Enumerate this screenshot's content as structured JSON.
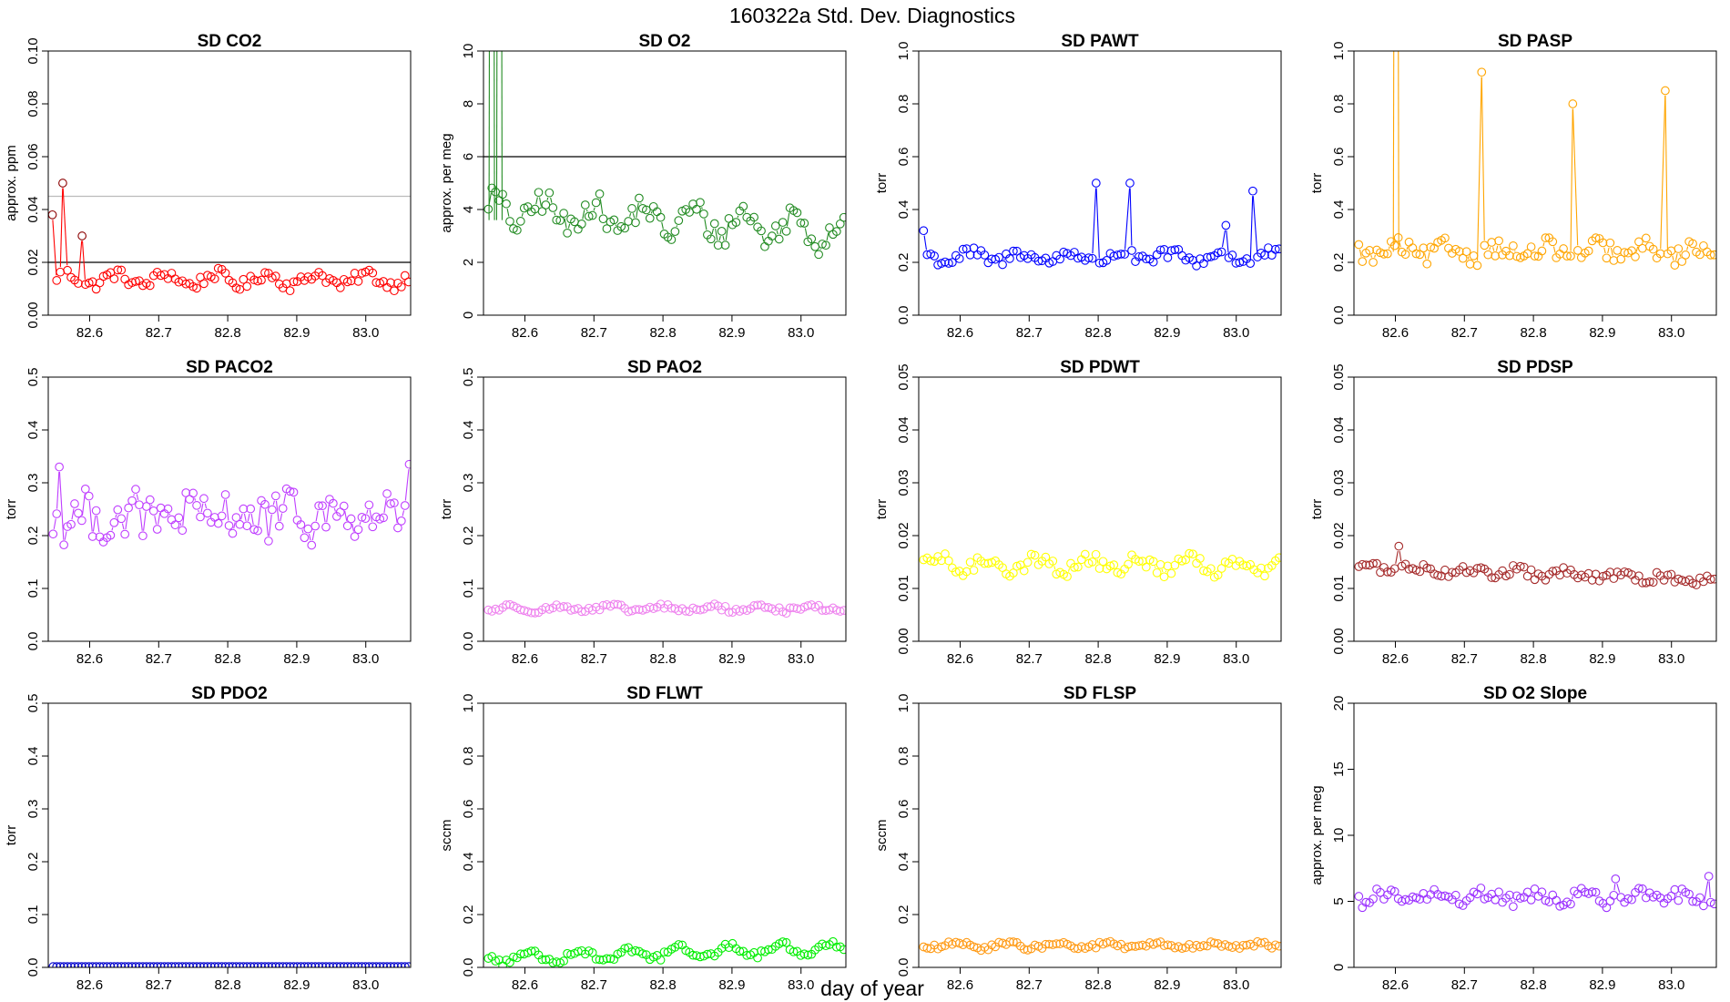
{
  "figure": {
    "title": "160322a   Std. Dev. Diagnostics",
    "xlabel": "day of year"
  },
  "chart_data": [
    {
      "type": "scatter",
      "title": "SD CO2",
      "ylabel": "approx. ppm",
      "color": "#ff0000",
      "xlim": [
        82.54,
        83.065
      ],
      "ylim": [
        0,
        0.1
      ],
      "yticks": [
        0,
        0.02,
        0.04,
        0.06,
        0.08,
        0.1
      ],
      "ytick_labels": [
        "0.00",
        "0.02",
        "0.04",
        "0.06",
        "0.08",
        "0.10"
      ],
      "xticks": [
        82.6,
        82.7,
        82.8,
        82.9,
        83.0
      ],
      "xtick_labels": [
        "82.6",
        "82.7",
        "82.8",
        "82.9",
        "83.0"
      ],
      "hlines": [
        {
          "y": 0.02,
          "color": "#000000"
        },
        {
          "y": 0.045,
          "color": "#bbbbbb"
        }
      ],
      "outliers": [
        {
          "x": 82.546,
          "y": 0.038
        },
        {
          "x": 82.561,
          "y": 0.05
        },
        {
          "x": 82.589,
          "y": 0.03
        }
      ],
      "base": 0.0135,
      "amp": 0.0022,
      "noise": 0.0022,
      "lines": true
    },
    {
      "type": "scatter",
      "title": "SD O2",
      "ylabel": "approx. per meg",
      "color": "#228b22",
      "xlim": [
        82.54,
        83.065
      ],
      "ylim": [
        0,
        10
      ],
      "yticks": [
        0,
        2,
        4,
        6,
        8,
        10
      ],
      "ytick_labels": [
        "0",
        "2",
        "4",
        "6",
        "8",
        "10"
      ],
      "xticks": [
        82.6,
        82.7,
        82.8,
        82.9,
        83.0
      ],
      "xtick_labels": [
        "82.6",
        "82.7",
        "82.8",
        "82.9",
        "83.0"
      ],
      "hlines": [
        {
          "y": 6,
          "color": "#000000"
        }
      ],
      "spikes": [
        {
          "x": 82.552,
          "y": 60
        },
        {
          "x": 82.563,
          "y": 60
        }
      ],
      "base": 3.6,
      "amp": 0.5,
      "noise": 0.5,
      "trend": 0.8,
      "lines": true
    },
    {
      "type": "scatter",
      "title": "SD PAWT",
      "ylabel": "torr",
      "color": "#0000ff",
      "xlim": [
        82.54,
        83.065
      ],
      "ylim": [
        0,
        1
      ],
      "yticks": [
        0,
        0.2,
        0.4,
        0.6,
        0.8,
        1
      ],
      "ytick_labels": [
        "0.0",
        "0.2",
        "0.4",
        "0.6",
        "0.8",
        "1.0"
      ],
      "xticks": [
        82.6,
        82.7,
        82.8,
        82.9,
        83.0
      ],
      "xtick_labels": [
        "82.6",
        "82.7",
        "82.8",
        "82.9",
        "83.0"
      ],
      "outliers": [
        {
          "x": 82.547,
          "y": 0.32
        },
        {
          "x": 82.797,
          "y": 0.5
        },
        {
          "x": 82.846,
          "y": 0.5
        },
        {
          "x": 83.024,
          "y": 0.47
        },
        {
          "x": 82.985,
          "y": 0.34
        }
      ],
      "base": 0.22,
      "amp": 0.018,
      "noise": 0.022,
      "lines": true
    },
    {
      "type": "scatter",
      "title": "SD PASP",
      "ylabel": "torr",
      "color": "#ffa500",
      "xlim": [
        82.54,
        83.065
      ],
      "ylim": [
        0,
        1
      ],
      "yticks": [
        0,
        0.2,
        0.4,
        0.6,
        0.8,
        1
      ],
      "ytick_labels": [
        "0.0",
        "0.2",
        "0.4",
        "0.6",
        "0.8",
        "1.0"
      ],
      "xticks": [
        82.6,
        82.7,
        82.8,
        82.9,
        83.0
      ],
      "xtick_labels": [
        "82.6",
        "82.7",
        "82.8",
        "82.9",
        "83.0"
      ],
      "outliers": [
        {
          "x": 82.725,
          "y": 0.92
        },
        {
          "x": 82.857,
          "y": 0.8
        },
        {
          "x": 82.991,
          "y": 0.85
        }
      ],
      "spikes": [
        {
          "x": 82.601,
          "y": 5
        }
      ],
      "base": 0.24,
      "amp": 0.02,
      "noise": 0.035,
      "lines": true
    },
    {
      "type": "scatter",
      "title": "SD PACO2",
      "ylabel": "torr",
      "color": "#bf3eff",
      "xlim": [
        82.54,
        83.065
      ],
      "ylim": [
        0,
        0.5
      ],
      "yticks": [
        0,
        0.1,
        0.2,
        0.3,
        0.4,
        0.5
      ],
      "ytick_labels": [
        "0.0",
        "0.1",
        "0.2",
        "0.3",
        "0.4",
        "0.5"
      ],
      "xticks": [
        82.6,
        82.7,
        82.8,
        82.9,
        83.0
      ],
      "xtick_labels": [
        "82.6",
        "82.7",
        "82.8",
        "82.9",
        "83.0"
      ],
      "outliers": [
        {
          "x": 83.063,
          "y": 0.335
        },
        {
          "x": 82.556,
          "y": 0.33
        }
      ],
      "base": 0.235,
      "amp": 0.01,
      "noise": 0.045,
      "lines": true
    },
    {
      "type": "scatter",
      "title": "SD PAO2",
      "ylabel": "torr",
      "color": "#ee82ee",
      "xlim": [
        82.54,
        83.065
      ],
      "ylim": [
        0,
        0.5
      ],
      "yticks": [
        0,
        0.1,
        0.2,
        0.3,
        0.4,
        0.5
      ],
      "ytick_labels": [
        "0.0",
        "0.1",
        "0.2",
        "0.3",
        "0.4",
        "0.5"
      ],
      "xticks": [
        82.6,
        82.7,
        82.8,
        82.9,
        83.0
      ],
      "xtick_labels": [
        "82.6",
        "82.7",
        "82.8",
        "82.9",
        "83.0"
      ],
      "base": 0.062,
      "amp": 0.004,
      "noise": 0.005,
      "lines": true
    },
    {
      "type": "scatter",
      "title": "SD PDWT",
      "ylabel": "torr",
      "color": "#ffff00",
      "xlim": [
        82.54,
        83.065
      ],
      "ylim": [
        0,
        0.05
      ],
      "yticks": [
        0,
        0.01,
        0.02,
        0.03,
        0.04,
        0.05
      ],
      "ytick_labels": [
        "0.00",
        "0.01",
        "0.02",
        "0.03",
        "0.04",
        "0.05"
      ],
      "xticks": [
        82.6,
        82.7,
        82.8,
        82.9,
        83.0
      ],
      "xtick_labels": [
        "82.6",
        "82.7",
        "82.8",
        "82.9",
        "83.0"
      ],
      "base": 0.0145,
      "amp": 0.0012,
      "noise": 0.0013,
      "lines": true
    },
    {
      "type": "scatter",
      "title": "SD PDSP",
      "ylabel": "torr",
      "color": "#a52a2a",
      "xlim": [
        82.54,
        83.065
      ],
      "ylim": [
        0,
        0.05
      ],
      "yticks": [
        0,
        0.01,
        0.02,
        0.03,
        0.04,
        0.05
      ],
      "ytick_labels": [
        "0.00",
        "0.01",
        "0.02",
        "0.03",
        "0.04",
        "0.05"
      ],
      "xticks": [
        82.6,
        82.7,
        82.8,
        82.9,
        83.0
      ],
      "xtick_labels": [
        "82.6",
        "82.7",
        "82.8",
        "82.9",
        "83.0"
      ],
      "outliers": [
        {
          "x": 82.605,
          "y": 0.018
        }
      ],
      "base": 0.0128,
      "amp": 0.0005,
      "noise": 0.0009,
      "trend": 0.0025,
      "lines": true
    },
    {
      "type": "scatter",
      "title": "SD PDO2",
      "ylabel": "torr",
      "color": "#0000cd",
      "xlim": [
        82.54,
        83.065
      ],
      "ylim": [
        0,
        0.5
      ],
      "yticks": [
        0,
        0.1,
        0.2,
        0.3,
        0.4,
        0.5
      ],
      "ytick_labels": [
        "0.0",
        "0.1",
        "0.2",
        "0.3",
        "0.4",
        "0.5"
      ],
      "xticks": [
        82.6,
        82.7,
        82.8,
        82.9,
        83.0
      ],
      "xtick_labels": [
        "82.6",
        "82.7",
        "82.8",
        "82.9",
        "83.0"
      ],
      "base": 0.0,
      "amp": 0,
      "noise": 0,
      "lines": false
    },
    {
      "type": "scatter",
      "title": "SD FLWT",
      "ylabel": "sccm",
      "color": "#00ee00",
      "xlim": [
        82.54,
        83.065
      ],
      "ylim": [
        0,
        1
      ],
      "yticks": [
        0,
        0.2,
        0.4,
        0.6,
        0.8,
        1
      ],
      "ytick_labels": [
        "0.0",
        "0.2",
        "0.4",
        "0.6",
        "0.8",
        "1.0"
      ],
      "xticks": [
        82.6,
        82.7,
        82.8,
        82.9,
        83.0
      ],
      "xtick_labels": [
        "82.6",
        "82.7",
        "82.8",
        "82.9",
        "83.0"
      ],
      "base": 0.055,
      "amp": 0.02,
      "noise": 0.012,
      "trend": -0.04,
      "lines": true
    },
    {
      "type": "scatter",
      "title": "SD FLSP",
      "ylabel": "sccm",
      "color": "#ff9912",
      "xlim": [
        82.54,
        83.065
      ],
      "ylim": [
        0,
        1
      ],
      "yticks": [
        0,
        0.2,
        0.4,
        0.6,
        0.8,
        1
      ],
      "ytick_labels": [
        "0.0",
        "0.2",
        "0.4",
        "0.6",
        "0.8",
        "1.0"
      ],
      "xticks": [
        82.6,
        82.7,
        82.8,
        82.9,
        83.0
      ],
      "xtick_labels": [
        "82.6",
        "82.7",
        "82.8",
        "82.9",
        "83.0"
      ],
      "base": 0.082,
      "amp": 0.008,
      "noise": 0.01,
      "lines": true
    },
    {
      "type": "scatter",
      "title": "SD O2 Slope",
      "ylabel": "approx. per meg",
      "color": "#9b30ff",
      "xlim": [
        82.54,
        83.065
      ],
      "ylim": [
        0,
        20
      ],
      "yticks": [
        0,
        5,
        10,
        15,
        20
      ],
      "ytick_labels": [
        "0",
        "5",
        "10",
        "15",
        "20"
      ],
      "xticks": [
        82.6,
        82.7,
        82.8,
        82.9,
        83.0
      ],
      "xtick_labels": [
        "82.6",
        "82.7",
        "82.8",
        "82.9",
        "83.0"
      ],
      "outliers": [
        {
          "x": 83.054,
          "y": 6.9
        },
        {
          "x": 82.919,
          "y": 6.7
        }
      ],
      "base": 5.3,
      "amp": 0.3,
      "noise": 0.5,
      "lines": true
    }
  ]
}
